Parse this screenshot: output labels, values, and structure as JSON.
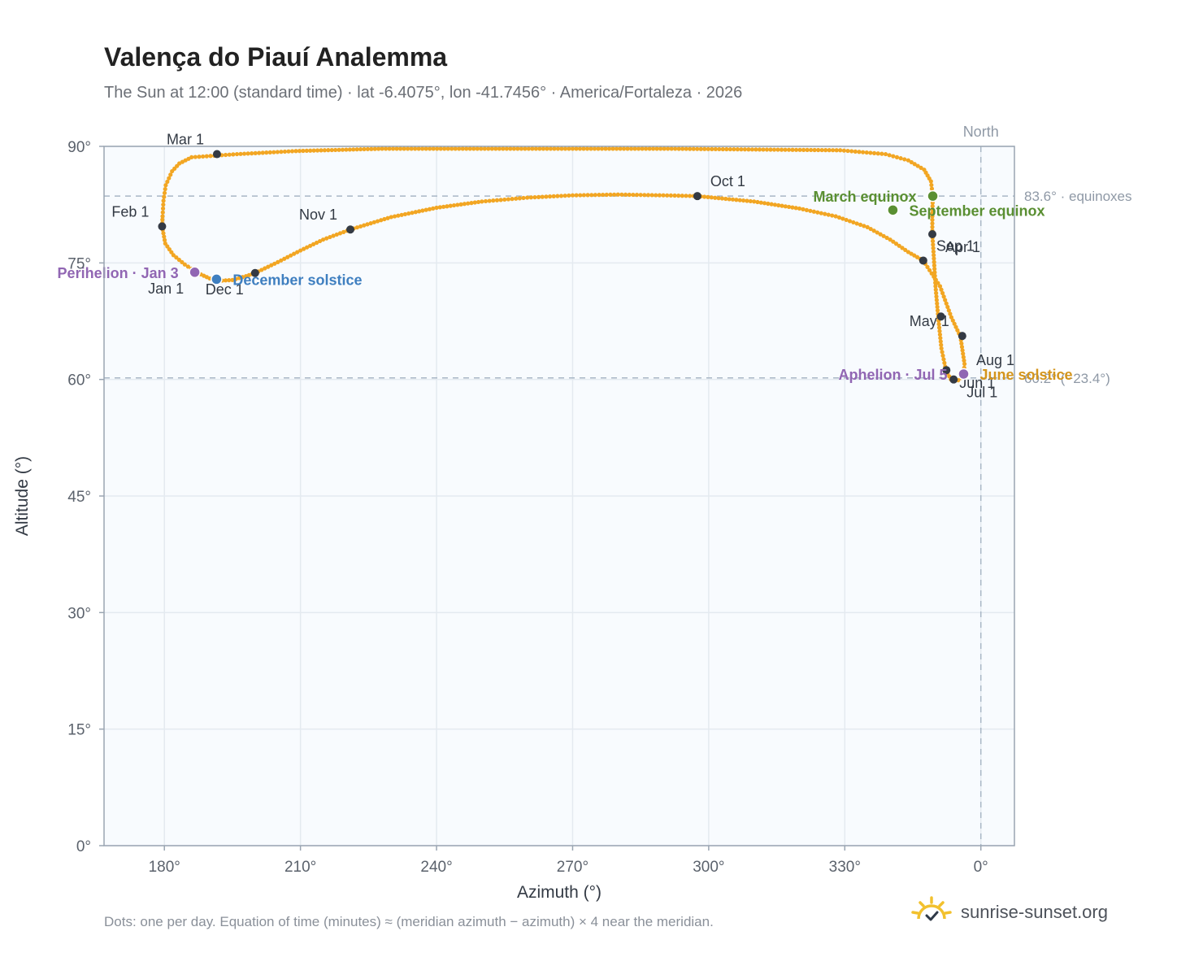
{
  "title": "Valença do Piauí Analemma",
  "subtitle": "The Sun at 12:00 (standard time) · lat -6.4075°, lon -41.7456° · America/Fortaleza · 2026",
  "footnote": "Dots: one per day. Equation of time (minutes) ≈ (meridian azimuth − azimuth) × 4 near the meridian.",
  "brand": {
    "name": "sunrise-sunset.org",
    "icon": "sun-logo-icon"
  },
  "colors": {
    "path": "#f2a623",
    "month_dot": "#343a44",
    "equinox": "#5a8f32",
    "december_solstice": "#3f7fc0",
    "june_solstice": "#d4951c",
    "apsis": "#9166b3",
    "reference_line": "#a9b7c6",
    "plot_bg": "#f8fbfe"
  },
  "chart_data": {
    "type": "scatter",
    "xlabel": "Azimuth (°)",
    "ylabel": "Altitude (°)",
    "x_ticks": [
      180,
      210,
      240,
      270,
      300,
      330,
      0
    ],
    "x_tick_labels": [
      "180°",
      "210°",
      "240°",
      "270°",
      "300°",
      "330°",
      "0°"
    ],
    "y_ticks": [
      0,
      15,
      30,
      45,
      60,
      75,
      90
    ],
    "y_tick_labels": [
      "0°",
      "15°",
      "30°",
      "45°",
      "60°",
      "75°",
      "90°"
    ],
    "xlim": [
      166.7,
      367.4
    ],
    "ylim": [
      0,
      90
    ],
    "grid": true,
    "north_label": "North",
    "north_azimuth": 360,
    "reference_lines": [
      {
        "altitude": 83.6,
        "label": "83.6° · equinoxes"
      },
      {
        "altitude": 60.2,
        "label": "60.2° (−23.4°)"
      }
    ],
    "path_series": [
      {
        "azimuth": 186.0,
        "altitude": 88.6
      },
      {
        "azimuth": 183.3,
        "altitude": 87.8
      },
      {
        "azimuth": 181.7,
        "altitude": 86.8
      },
      {
        "azimuth": 180.3,
        "altitude": 85.0
      },
      {
        "azimuth": 179.8,
        "altitude": 83.0
      },
      {
        "azimuth": 179.6,
        "altitude": 81.0
      },
      {
        "azimuth": 179.5,
        "altitude": 79.7
      },
      {
        "azimuth": 180.2,
        "altitude": 77.5
      },
      {
        "azimuth": 182.0,
        "altitude": 76.0
      },
      {
        "azimuth": 184.5,
        "altitude": 74.8
      },
      {
        "azimuth": 187.4,
        "altitude": 73.7
      },
      {
        "azimuth": 190.0,
        "altitude": 73.0
      },
      {
        "azimuth": 192.0,
        "altitude": 72.7
      },
      {
        "azimuth": 195.0,
        "altitude": 72.8
      },
      {
        "azimuth": 198.0,
        "altitude": 73.3
      },
      {
        "azimuth": 200.0,
        "altitude": 73.7
      },
      {
        "azimuth": 205.0,
        "altitude": 75.1
      },
      {
        "azimuth": 210.0,
        "altitude": 76.6
      },
      {
        "azimuth": 215.0,
        "altitude": 78.0
      },
      {
        "azimuth": 221.0,
        "altitude": 79.3
      },
      {
        "azimuth": 230.0,
        "altitude": 80.9
      },
      {
        "azimuth": 240.0,
        "altitude": 82.1
      },
      {
        "azimuth": 250.0,
        "altitude": 82.9
      },
      {
        "azimuth": 260.0,
        "altitude": 83.4
      },
      {
        "azimuth": 270.0,
        "altitude": 83.7
      },
      {
        "azimuth": 280.0,
        "altitude": 83.8
      },
      {
        "azimuth": 290.0,
        "altitude": 83.7
      },
      {
        "azimuth": 297.5,
        "altitude": 83.6
      },
      {
        "azimuth": 310.0,
        "altitude": 82.9
      },
      {
        "azimuth": 320.0,
        "altitude": 82.0
      },
      {
        "azimuth": 328.0,
        "altitude": 81.0
      },
      {
        "azimuth": 335.0,
        "altitude": 79.6
      },
      {
        "azimuth": 340.0,
        "altitude": 78.0
      },
      {
        "azimuth": 344.0,
        "altitude": 76.4
      },
      {
        "azimuth": 347.3,
        "altitude": 75.3
      },
      {
        "azimuth": 351.0,
        "altitude": 72.0
      },
      {
        "azimuth": 353.5,
        "altitude": 68.0
      },
      {
        "azimuth": 355.5,
        "altitude": 65.5
      },
      {
        "azimuth": 356.4,
        "altitude": 62.0
      },
      {
        "azimuth": 356.2,
        "altitude": 60.5
      },
      {
        "azimuth": 355.0,
        "altitude": 59.9
      },
      {
        "azimuth": 353.4,
        "altitude": 60.0
      },
      {
        "azimuth": 352.3,
        "altitude": 61.2
      },
      {
        "azimuth": 351.3,
        "altitude": 64.0
      },
      {
        "azimuth": 350.6,
        "altitude": 68.0
      },
      {
        "azimuth": 350.0,
        "altitude": 72.0
      },
      {
        "azimuth": 349.6,
        "altitude": 76.0
      },
      {
        "azimuth": 349.3,
        "altitude": 78.7
      },
      {
        "azimuth": 349.3,
        "altitude": 81.0
      },
      {
        "azimuth": 349.4,
        "altitude": 83.6
      },
      {
        "azimuth": 349.0,
        "altitude": 85.5
      },
      {
        "azimuth": 347.5,
        "altitude": 87.0
      },
      {
        "azimuth": 344.0,
        "altitude": 88.2
      },
      {
        "azimuth": 339.0,
        "altitude": 89.0
      },
      {
        "azimuth": 329.0,
        "altitude": 89.5
      },
      {
        "azimuth": 291.0,
        "altitude": 89.7
      },
      {
        "azimuth": 228.0,
        "altitude": 89.7
      },
      {
        "azimuth": 209.0,
        "altitude": 89.4
      },
      {
        "azimuth": 196.0,
        "altitude": 89.0
      },
      {
        "azimuth": 186.0,
        "altitude": 88.6
      }
    ],
    "month_markers": [
      {
        "label": "Jan 1",
        "azimuth": 186.8,
        "altitude": 73.8,
        "label_pos": "below-left"
      },
      {
        "label": "Feb 1",
        "azimuth": 179.5,
        "altitude": 79.7,
        "label_pos": "above-left"
      },
      {
        "label": "Mar 1",
        "azimuth": 191.6,
        "altitude": 89.0,
        "label_pos": "above-left"
      },
      {
        "label": "Apr 1",
        "azimuth": 349.3,
        "altitude": 78.7,
        "label_pos": "below-right"
      },
      {
        "label": "May 1",
        "azimuth": 355.9,
        "altitude": 65.6,
        "label_pos": "above-left"
      },
      {
        "label": "Jun 1",
        "azimuth": 352.4,
        "altitude": 61.2,
        "label_pos": "below-right"
      },
      {
        "label": "Jul 1",
        "azimuth": 354.0,
        "altitude": 60.0,
        "label_pos": "below-right"
      },
      {
        "label": "Aug 1",
        "azimuth": 356.1,
        "altitude": 60.6,
        "label_pos": "above-right"
      },
      {
        "label": "Sep 1",
        "azimuth": 347.3,
        "altitude": 75.3,
        "label_pos": "above-right"
      },
      {
        "label": "Oct 1",
        "azimuth": 297.5,
        "altitude": 83.6,
        "label_pos": "above-right"
      },
      {
        "label": "Nov 1",
        "azimuth": 221.0,
        "altitude": 79.3,
        "label_pos": "above-left"
      },
      {
        "label": "Dec 1",
        "azimuth": 200.0,
        "altitude": 73.7,
        "label_pos": "below-left"
      }
    ],
    "unlabeled_markers": [
      {
        "azimuth": 351.2,
        "altitude": 68.1
      }
    ],
    "events": [
      {
        "label": "March equinox",
        "kind": "equinox",
        "azimuth": 349.4,
        "altitude": 83.6,
        "label_side": "left"
      },
      {
        "label": "September equinox",
        "kind": "equinox",
        "azimuth": 340.6,
        "altitude": 81.8,
        "label_side": "right"
      },
      {
        "label": "December solstice",
        "kind": "december_solstice",
        "azimuth": 191.5,
        "altitude": 72.9,
        "label_side": "right"
      },
      {
        "label": "June solstice",
        "kind": "june_solstice",
        "azimuth": 356.2,
        "altitude": 60.7,
        "label_side": "right"
      },
      {
        "label": "Perihelion · Jan 3",
        "kind": "apsis",
        "azimuth": 186.7,
        "altitude": 73.8,
        "label_side": "left"
      },
      {
        "label": "Aphelion · Jul 5",
        "kind": "apsis",
        "azimuth": 356.2,
        "altitude": 60.7,
        "label_side": "left"
      }
    ]
  }
}
